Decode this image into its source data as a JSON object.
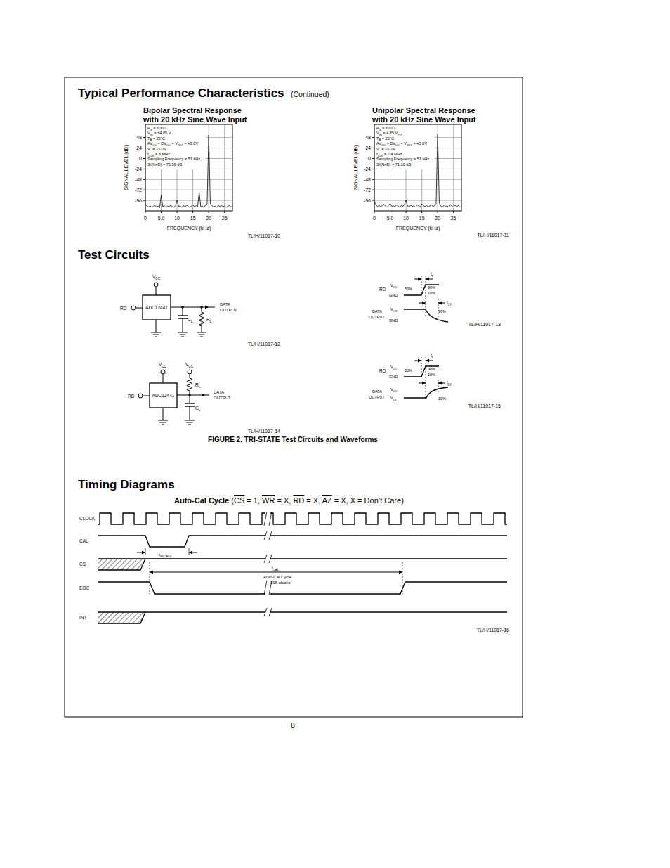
{
  "chart_data": [
    {
      "type": "line",
      "title": [
        "Bipolar Spectral Response",
        "with 20 kHz Sine Wave Input"
      ],
      "x_label": "FREQUENCY (kHz)",
      "y_label": "SIGNAL LEVEL (dB)",
      "xlim": [
        0,
        27.5
      ],
      "ylim": [
        -120,
        78
      ],
      "xticks": [
        0,
        {
          "value": 5,
          "label": "5.0"
        },
        10,
        15,
        20,
        25
      ],
      "yticks": [
        48,
        24,
        0,
        -24,
        -48,
        -72,
        -96
      ],
      "grid": true,
      "annotations": [
        [
          "R",
          {
            "sub": "S"
          },
          " = 600Ω"
        ],
        [
          "V",
          {
            "sub": "IN"
          },
          " = ±4.85 V"
        ],
        [
          "T",
          {
            "sub": "A"
          },
          " = 25°C"
        ],
        [
          "AV",
          {
            "sub": "CC"
          },
          " = DV",
          {
            "sub": "CC"
          },
          " = V",
          {
            "sub": "REF"
          },
          " = +5.0V"
        ],
        [
          "V⁻ = −5.0V"
        ],
        [
          "f",
          {
            "sub": "CLK"
          },
          " = 8 MHz"
        ],
        [
          "Sampling Frequency = 51 kHz"
        ],
        [
          "S/(N+D) = 75.36 dB"
        ]
      ],
      "caption": "TL/H/11017-10",
      "x": [
        0,
        0.5,
        1,
        1.5,
        2,
        2.5,
        3,
        3.5,
        4,
        4.5,
        5,
        5.5,
        6,
        6.5,
        7,
        7.5,
        8,
        8.5,
        9,
        9.5,
        10,
        10.5,
        11,
        11.5,
        12,
        12.5,
        13,
        13.5,
        14,
        14.5,
        15,
        15.5,
        16,
        16.5,
        17,
        17.5,
        18,
        18.5,
        19,
        19.5,
        20,
        20.5,
        21,
        21.5,
        22,
        22.5,
        23,
        23.5,
        24,
        24.5,
        25,
        25.5,
        26,
        26.5,
        27,
        27.5
      ],
      "series": [
        {
          "color": "#000000",
          "values": [
            -104,
            -109,
            -111,
            -108,
            -112,
            -110,
            -107,
            -111,
            -109,
            -113,
            -84,
            -110,
            -108,
            -112,
            -109,
            -111,
            -107,
            -110,
            -112,
            -108,
            -96,
            -110,
            -109,
            -112,
            -108,
            -111,
            -107,
            -110,
            -112,
            -109,
            -106,
            -111,
            -108,
            -110,
            -78,
            -111,
            -109,
            -112,
            -107,
            -104,
            54,
            -103,
            -108,
            -111,
            -109,
            -112,
            -108,
            -110,
            -107,
            -111,
            -109,
            -112,
            -110,
            -108,
            -111,
            -109
          ]
        }
      ]
    },
    {
      "type": "line",
      "title": [
        "Unipolar Spectral Response",
        "with 20 kHz Sine Wave Input"
      ],
      "x_label": "FREQUENCY (kHz)",
      "y_label": "SIGNAL LEVEL (dB)",
      "xlim": [
        0,
        27.5
      ],
      "ylim": [
        -120,
        78
      ],
      "xticks": [
        0,
        {
          "value": 5,
          "label": "5.0"
        },
        10,
        15,
        20,
        25
      ],
      "yticks": [
        48,
        24,
        0,
        -24,
        -48,
        -72,
        -96
      ],
      "grid": true,
      "annotations": [
        [
          "R",
          {
            "sub": "S"
          },
          " = 600Ω"
        ],
        [
          "V",
          {
            "sub": "IN"
          },
          " = 4.85 V",
          {
            "sub": "P-P"
          }
        ],
        [
          "T",
          {
            "sub": "A"
          },
          " = 25°C"
        ],
        [
          "AV",
          {
            "sub": "CC"
          },
          " = DV",
          {
            "sub": "CC"
          },
          " = V",
          {
            "sub": "REF"
          },
          " = +5.0V"
        ],
        [
          "V⁻ = −5.2V"
        ],
        [
          "f",
          {
            "sub": "CLK"
          },
          " = 2.4 MHz"
        ],
        [
          "Sampling Frequency = 51 kHz"
        ],
        [
          "S/(N+D) = 71.10 dB"
        ]
      ],
      "caption": "TL/H/11017-11",
      "x": [
        0,
        0.5,
        1,
        1.5,
        2,
        2.5,
        3,
        3.5,
        4,
        4.5,
        5,
        5.5,
        6,
        6.5,
        7,
        7.5,
        8,
        8.5,
        9,
        9.5,
        10,
        10.5,
        11,
        11.5,
        12,
        12.5,
        13,
        13.5,
        14,
        14.5,
        15,
        15.5,
        16,
        16.5,
        17,
        17.5,
        18,
        18.5,
        19,
        19.5,
        20,
        20.5,
        21,
        21.5,
        22,
        22.5,
        23,
        23.5,
        24,
        24.5,
        25,
        25.5,
        26,
        26.5,
        27,
        27.5
      ],
      "series": [
        {
          "color": "#000000",
          "values": [
            -98,
            -106,
            -110,
            -107,
            -111,
            -108,
            -105,
            -109,
            -112,
            -107,
            -103,
            -110,
            -108,
            -111,
            -106,
            -109,
            -112,
            -108,
            -110,
            -105,
            -96,
            -109,
            -111,
            -107,
            -110,
            -108,
            -112,
            -106,
            -109,
            -111,
            -104,
            -108,
            -110,
            -107,
            -111,
            -109,
            -106,
            -110,
            -108,
            -103,
            56,
            -102,
            -109,
            -111,
            -107,
            -110,
            -108,
            -112,
            -106,
            -109,
            -111,
            -107,
            -110,
            -108,
            -112,
            -109
          ]
        }
      ]
    }
  ],
  "page": {
    "section_titles": {
      "performance": "Typical Performance Characteristics",
      "continued": "(Continued)",
      "test_circuits": "Test Circuits",
      "timing": "Timing Diagrams"
    },
    "test_circuits": {
      "circuit_1": {
        "vcc": [
          "V",
          {
            "sub": "CC"
          }
        ],
        "chip": "ADC12441",
        "input": "RD",
        "output": [
          "DATA",
          "OUTPUT"
        ],
        "cl": [
          "C",
          {
            "sub": "L"
          }
        ],
        "rl": [
          "R",
          {
            "sub": "L"
          }
        ],
        "caption": "TL/H/11017-12"
      },
      "waveform_1": {
        "vcc": [
          "V",
          {
            "sub": "CC"
          }
        ],
        "input": "RD",
        "gnd": "GND",
        "p50": "50%",
        "p90": "90%",
        "p10": "10%",
        "tr": [
          "t",
          {
            "sub": "r"
          }
        ],
        "t1h": [
          "t",
          {
            "sub": "1H"
          }
        ],
        "output": [
          "DATA",
          "OUTPUT"
        ],
        "voh": [
          "V",
          {
            "sub": "OH"
          }
        ],
        "gnd2": "GND",
        "out_level": "90%",
        "caption": "TL/H/11017-13"
      },
      "circuit_2": {
        "vcc_1": [
          "V",
          {
            "sub": "CC"
          }
        ],
        "vcc_2": [
          "V",
          {
            "sub": "CC"
          }
        ],
        "chip": "ADC12441",
        "input": "RD",
        "output": [
          "DATA",
          "OUTPUT"
        ],
        "rl": [
          "R",
          {
            "sub": "L"
          }
        ],
        "cl": [
          "C",
          {
            "sub": "L"
          }
        ],
        "caption": "TL/H/11017-14"
      },
      "waveform_2": {
        "vcc": [
          "V",
          {
            "sub": "CC"
          }
        ],
        "input": "RD",
        "gnd": "GND",
        "p50": "50%",
        "p90": "90%",
        "p10": "10%",
        "tr": [
          "t",
          {
            "sub": "r"
          }
        ],
        "t0h": [
          "t",
          {
            "sub": "0H"
          }
        ],
        "output": [
          "DATA",
          "OUTPUT"
        ],
        "vcc2": [
          "V",
          {
            "sub": "CC"
          }
        ],
        "vol": [
          "V",
          {
            "sub": "OL"
          }
        ],
        "out_level": "10%",
        "caption": "TL/H/11017-15"
      },
      "figure_caption": "FIGURE 2. TRI-STATE Test Circuits and Waveforms"
    },
    "timing": {
      "title": [
        {
          "bold": "Auto-Cal Cycle"
        },
        " (",
        {
          "over": "CS"
        },
        " = 1, ",
        {
          "over": "WR"
        },
        " = X, ",
        {
          "over": "RD"
        },
        " = X, ",
        {
          "over": "AZ"
        },
        " = X, X = Don’t Care)"
      ],
      "signals": [
        "CLOCK",
        "CAL",
        "CS",
        "EOC",
        "INT"
      ],
      "tw": [
        "t",
        {
          "sub": "W(CAL)L"
        }
      ],
      "tcal": [
        "t",
        {
          "sub": "CAL"
        }
      ],
      "cycle": "Auto-Cal Cycle",
      "clocks": "~ 1396 clocks",
      "caption": "TL/H/11017-16"
    },
    "page_number": "8"
  }
}
